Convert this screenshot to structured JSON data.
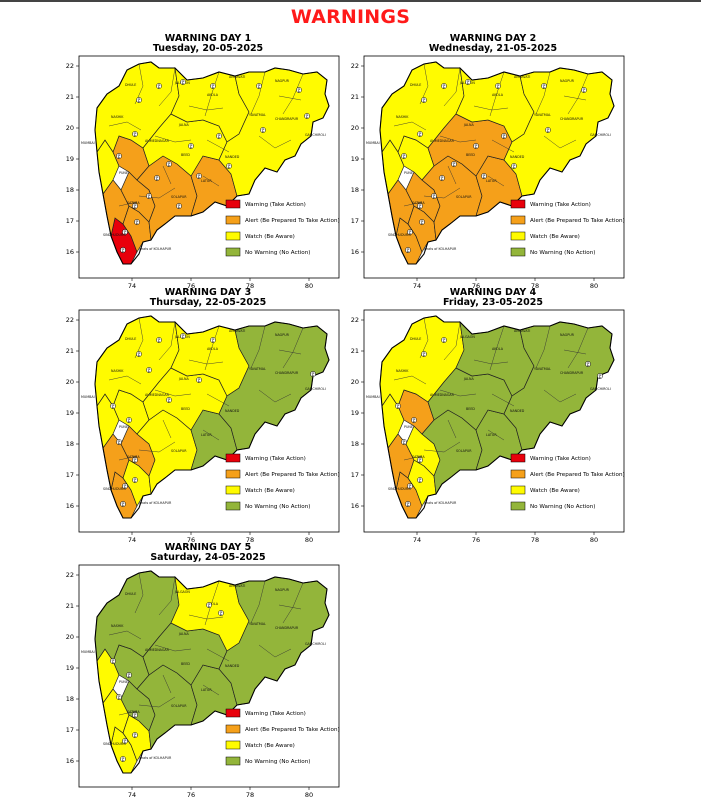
{
  "title": "WARNINGS",
  "colors": {
    "warning": "#e8000b",
    "alert": "#f5a01a",
    "watch": "#fffb00",
    "none": "#93b53a",
    "title": "#ff1a1a"
  },
  "legend": [
    {
      "key": "warning",
      "label": "Warning (Take Action)"
    },
    {
      "key": "alert",
      "label": "Alert (Be Prepared To Take Action)"
    },
    {
      "key": "watch",
      "label": "Watch (Be Aware)"
    },
    {
      "key": "none",
      "label": "No Warning (No Action)"
    }
  ],
  "axes": {
    "x_ticks": [
      "74",
      "76",
      "78",
      "80"
    ],
    "y_ticks": [
      "22",
      "21",
      "20",
      "19",
      "18",
      "17",
      "16"
    ]
  },
  "days": [
    {
      "title": "WARNING DAY 1",
      "date": "Tuesday, 20-05-2025"
    },
    {
      "title": "WARNING DAY 2",
      "date": "Wednesday, 21-05-2025"
    },
    {
      "title": "WARNING DAY 3",
      "date": "Thursday, 22-05-2025"
    },
    {
      "title": "WARNING DAY 4",
      "date": "Friday, 23-05-2025"
    },
    {
      "title": "WARNING DAY 5",
      "date": "Saturday, 24-05-2025"
    }
  ],
  "district_labels": {
    "mumbai": "MUMBAI",
    "jalgaon": "JALGAON",
    "nagpur": "NAGPUR",
    "amravati": "AMRAVATI",
    "chandrapur": "CHANDRAPUR",
    "gadchiroli": "GADCHIROLI",
    "nanded": "NANDED",
    "latur": "LATUR",
    "solapur": "SOLAPUR",
    "sindhudurg": "SINDHUDURG",
    "kolhapur": "ghats of KOLHAPUR",
    "satara": "SATARA",
    "pune": "PUNE",
    "nashik": "NASHIK",
    "ahmednagar": "AHMEDNAGAR",
    "beed": "BEED",
    "yavatmal": "YAVATMAL",
    "akola": "AKOLA",
    "dhule": "DHULE",
    "jalna": "JALNA"
  }
}
